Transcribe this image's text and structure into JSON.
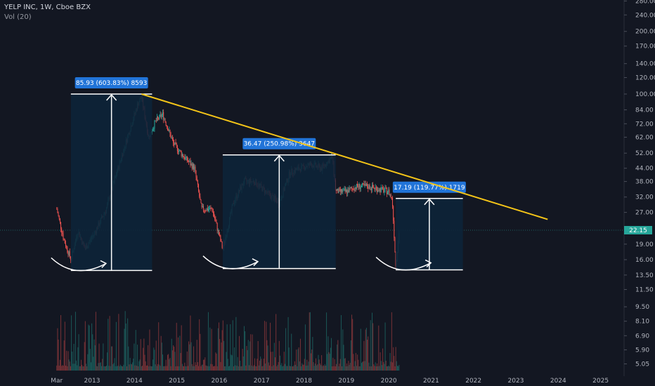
{
  "header": {
    "symbol_line": "YELP INC, 1W, Cboe BZX",
    "indicator_line": "Vol (20)"
  },
  "colors": {
    "background": "#131722",
    "candle_up": "#26a69a",
    "candle_down": "#ef5350",
    "trendline": "#f5c518",
    "box_fill": "#0d2338",
    "annotation": "#ffffff",
    "label_bg": "#2174d8",
    "price_marker": "#26a69a"
  },
  "chart_data": {
    "type": "candlestick",
    "scale": "log",
    "y_ticks": [
      "280.00",
      "240.00",
      "200.00",
      "170.00",
      "140.00",
      "120.00",
      "100.00",
      "84.00",
      "72.00",
      "62.00",
      "52.00",
      "44.00",
      "38.00",
      "32.00",
      "27.00",
      "22.15",
      "19.00",
      "16.00",
      "13.50",
      "11.50",
      "9.50",
      "8.10",
      "6.90",
      "5.90",
      "5.05"
    ],
    "x_ticks": [
      "Mar",
      "2013",
      "2014",
      "2015",
      "2016",
      "2017",
      "2018",
      "2019",
      "2020",
      "2021",
      "2022",
      "2023",
      "2024",
      "2025"
    ],
    "last_price": "22.15",
    "price_path": [
      [
        "2012-03",
        28
      ],
      [
        "2012-05",
        20
      ],
      [
        "2012-07",
        16
      ],
      [
        "2012-09",
        22
      ],
      [
        "2012-11",
        18
      ],
      [
        "2013-02",
        22
      ],
      [
        "2013-05",
        28
      ],
      [
        "2013-08",
        42
      ],
      [
        "2013-11",
        62
      ],
      [
        "2014-02",
        90
      ],
      [
        "2014-03",
        97
      ],
      [
        "2014-05",
        62
      ],
      [
        "2014-07",
        74
      ],
      [
        "2014-09",
        80
      ],
      [
        "2014-12",
        58
      ],
      [
        "2015-03",
        50
      ],
      [
        "2015-06",
        44
      ],
      [
        "2015-08",
        28
      ],
      [
        "2015-11",
        28
      ],
      [
        "2016-02",
        18
      ],
      [
        "2016-05",
        30
      ],
      [
        "2016-08",
        38
      ],
      [
        "2016-11",
        38
      ],
      [
        "2017-03",
        33
      ],
      [
        "2017-06",
        30
      ],
      [
        "2017-09",
        42
      ],
      [
        "2017-12",
        44
      ],
      [
        "2018-03",
        46
      ],
      [
        "2018-06",
        44
      ],
      [
        "2018-09",
        50
      ],
      [
        "2018-10",
        34
      ],
      [
        "2019-01",
        34
      ],
      [
        "2019-04",
        36
      ],
      [
        "2019-07",
        36
      ],
      [
        "2019-10",
        35
      ],
      [
        "2020-01",
        34
      ],
      [
        "2020-02",
        31
      ],
      [
        "2020-03",
        15
      ],
      [
        "2020-04",
        22
      ]
    ],
    "trendline": {
      "from": [
        "2014-03",
        100
      ],
      "to": [
        "2023-10",
        25
      ]
    },
    "measures": [
      {
        "label": "85.93 (603.83%) 8593",
        "from_date": "2012-07",
        "to_date": "2014-06",
        "low": 14.2,
        "high": 100
      },
      {
        "label": "36.47 (250.98%) 3647",
        "from_date": "2016-02",
        "to_date": "2018-10",
        "low": 14.5,
        "high": 51
      },
      {
        "label": "17.19 (119.77%) 1719",
        "from_date": "2020-03",
        "to_date": "2021-10",
        "low": 14.3,
        "high": 31.5
      }
    ]
  }
}
